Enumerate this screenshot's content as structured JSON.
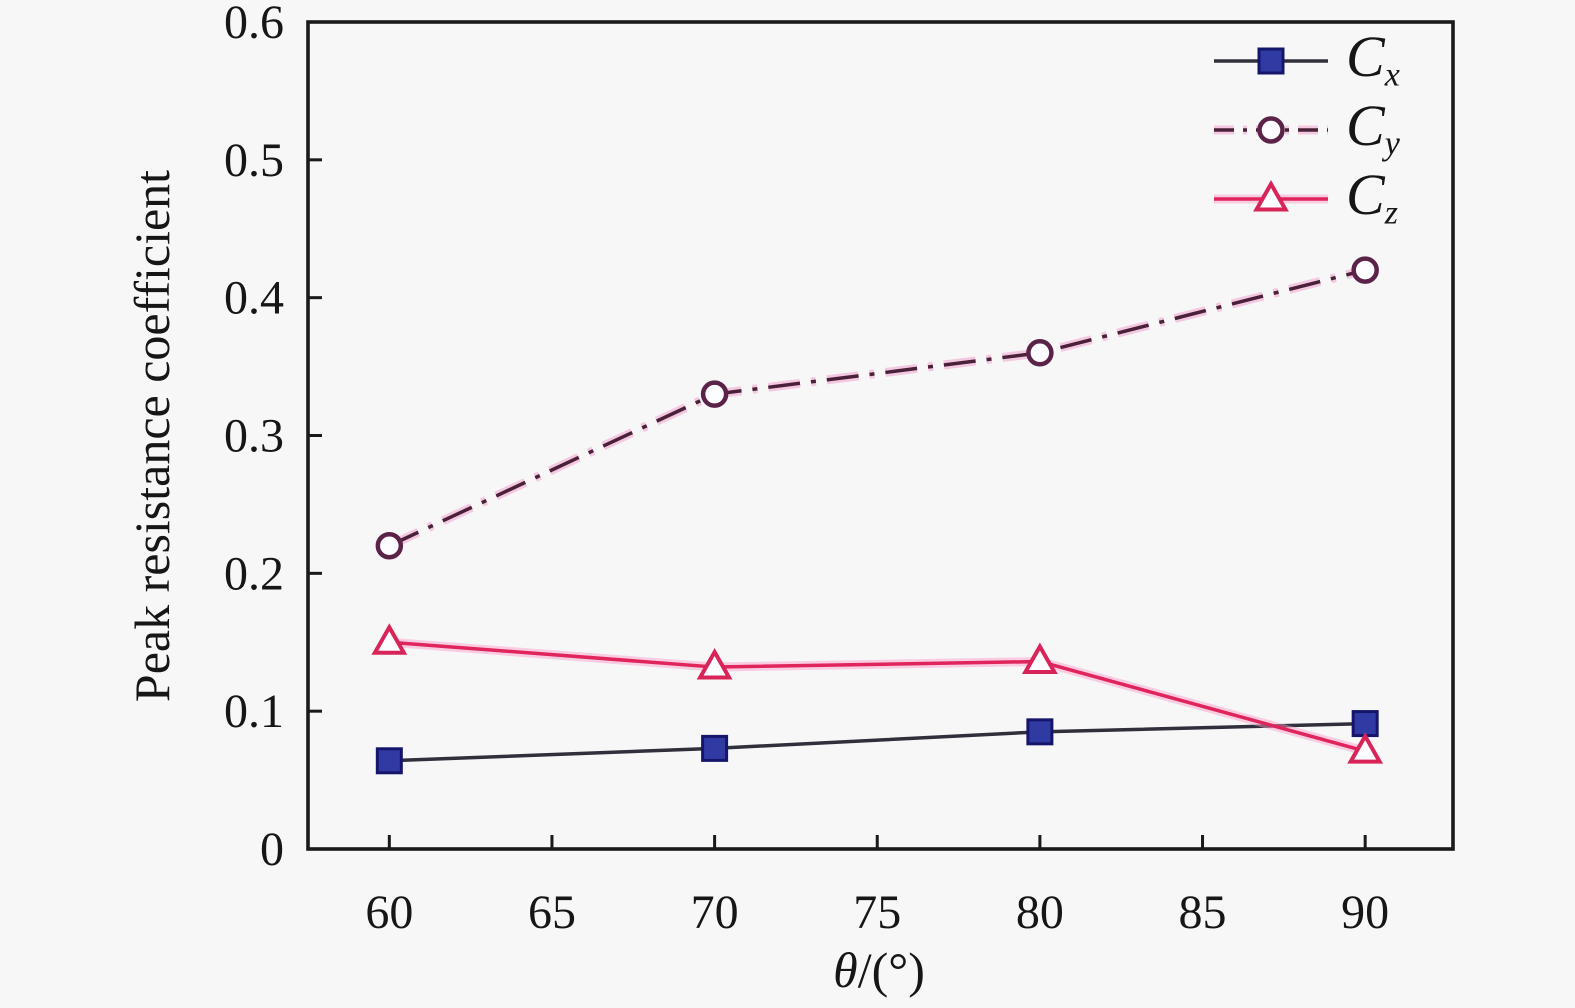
{
  "figure": {
    "background": "#f7f7f8",
    "axis_color": "#1a1a1a",
    "text_color": "#161616"
  },
  "chart_data": {
    "type": "line",
    "title": "",
    "xlabel": "θ/(°)",
    "xlabel_theta": "θ",
    "xlabel_rest": "/(°)",
    "ylabel": "Peak resistance coefficient",
    "x": [
      60,
      70,
      80,
      90
    ],
    "xlim": [
      57.5,
      92.7
    ],
    "ylim": [
      0,
      0.6
    ],
    "xticks": [
      60,
      65,
      70,
      75,
      80,
      85,
      90
    ],
    "yticks": [
      0,
      0.1,
      0.2,
      0.3,
      0.4,
      0.5,
      0.6
    ],
    "ytick_labels": [
      "0",
      "0.1",
      "0.2",
      "0.3",
      "0.4",
      "0.5",
      "0.6"
    ],
    "grid": false,
    "legend_position": "top-right-inside",
    "series": [
      {
        "name": "Cx",
        "label": "C",
        "sub": "x",
        "values": [
          0.064,
          0.073,
          0.085,
          0.091
        ],
        "line_color": "#30303c",
        "line_style": "solid",
        "marker": "square",
        "marker_fill": "#2f3ba3",
        "marker_edge": "#15156b",
        "halo_color": ""
      },
      {
        "name": "Cy",
        "label": "C",
        "sub": "y",
        "values": [
          0.22,
          0.33,
          0.36,
          0.42
        ],
        "line_color": "#4a2138",
        "line_style": "dashdot",
        "marker": "circle",
        "marker_fill": "#fdfdff",
        "marker_edge": "#5c2348",
        "halo_color": "rgba(240,130,190,0.40)"
      },
      {
        "name": "Cz",
        "label": "C",
        "sub": "z",
        "values": [
          0.15,
          0.132,
          0.136,
          0.071
        ],
        "line_color": "#e0245c",
        "line_style": "solid",
        "marker": "triangle",
        "marker_fill": "#fdfdff",
        "marker_edge": "#d82458",
        "halo_color": "rgba(250,150,200,0.45)"
      }
    ]
  }
}
